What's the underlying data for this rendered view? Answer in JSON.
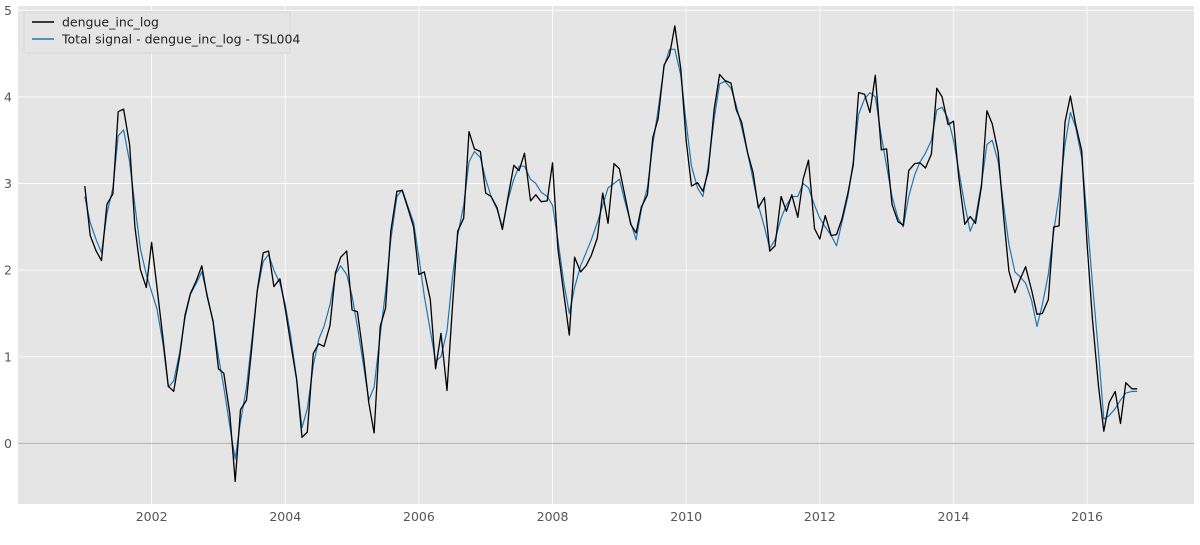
{
  "chart_data": {
    "type": "line",
    "title": "",
    "xlabel": "",
    "ylabel": "",
    "xlim": [
      2000.0,
      2017.6
    ],
    "ylim": [
      -0.7,
      5.05
    ],
    "x_ticks": [
      2002,
      2004,
      2006,
      2008,
      2010,
      2012,
      2014,
      2016
    ],
    "y_ticks": [
      0,
      1,
      2,
      3,
      4,
      5
    ],
    "grid": true,
    "zero_line": true,
    "legend_position": "top-left",
    "colors": {
      "background": "#e5e5e5",
      "grid": "#ffffff",
      "zero_line": "#b0b0b0"
    },
    "series": [
      {
        "name": "dengue_inc_log",
        "color": "#000000",
        "x": [
          2001.0,
          2001.08,
          2001.17,
          2001.25,
          2001.33,
          2001.42,
          2001.5,
          2001.58,
          2001.67,
          2001.75,
          2001.83,
          2001.92,
          2002.0,
          2002.08,
          2002.17,
          2002.25,
          2002.33,
          2002.42,
          2002.5,
          2002.58,
          2002.67,
          2002.75,
          2002.83,
          2002.92,
          2003.0,
          2003.08,
          2003.17,
          2003.25,
          2003.33,
          2003.42,
          2003.5,
          2003.58,
          2003.67,
          2003.75,
          2003.83,
          2003.92,
          2004.0,
          2004.08,
          2004.17,
          2004.25,
          2004.33,
          2004.42,
          2004.5,
          2004.58,
          2004.67,
          2004.75,
          2004.83,
          2004.92,
          2005.0,
          2005.08,
          2005.17,
          2005.25,
          2005.33,
          2005.42,
          2005.5,
          2005.58,
          2005.67,
          2005.75,
          2005.83,
          2005.92,
          2006.0,
          2006.08,
          2006.17,
          2006.25,
          2006.33,
          2006.42,
          2006.5,
          2006.58,
          2006.67,
          2006.75,
          2006.83,
          2006.92,
          2007.0,
          2007.08,
          2007.17,
          2007.25,
          2007.33,
          2007.42,
          2007.5,
          2007.58,
          2007.67,
          2007.75,
          2007.83,
          2007.92,
          2008.0,
          2008.08,
          2008.17,
          2008.25,
          2008.33,
          2008.42,
          2008.5,
          2008.58,
          2008.67,
          2008.75,
          2008.83,
          2008.92,
          2009.0,
          2009.08,
          2009.17,
          2009.25,
          2009.33,
          2009.42,
          2009.5,
          2009.58,
          2009.67,
          2009.75,
          2009.83,
          2009.92,
          2010.0,
          2010.08,
          2010.17,
          2010.25,
          2010.33,
          2010.42,
          2010.5,
          2010.58,
          2010.67,
          2010.75,
          2010.83,
          2010.92,
          2011.0,
          2011.08,
          2011.17,
          2011.25,
          2011.33,
          2011.42,
          2011.5,
          2011.58,
          2011.67,
          2011.75,
          2011.83,
          2011.92,
          2012.0,
          2012.08,
          2012.17,
          2012.25,
          2012.33,
          2012.42,
          2012.5,
          2012.58,
          2012.67,
          2012.75,
          2012.83,
          2012.92,
          2013.0,
          2013.08,
          2013.17,
          2013.25,
          2013.33,
          2013.42,
          2013.5,
          2013.58,
          2013.67,
          2013.75,
          2013.83,
          2013.92,
          2014.0,
          2014.08,
          2014.17,
          2014.25,
          2014.33,
          2014.42,
          2014.5,
          2014.58,
          2014.67,
          2014.75,
          2014.83,
          2014.92,
          2015.0,
          2015.08,
          2015.17,
          2015.25,
          2015.33,
          2015.42,
          2015.5,
          2015.58,
          2015.67,
          2015.75,
          2015.83,
          2015.92,
          2016.0,
          2016.08,
          2016.17,
          2016.25,
          2016.33,
          2016.42,
          2016.5,
          2016.58,
          2016.67,
          2016.75
        ],
        "y": [
          2.97,
          2.4,
          2.22,
          2.11,
          2.76,
          2.88,
          3.83,
          3.86,
          3.45,
          2.5,
          2.01,
          1.8,
          2.32,
          1.8,
          1.21,
          0.66,
          0.6,
          1.01,
          1.48,
          1.73,
          1.88,
          2.05,
          1.7,
          1.41,
          0.86,
          0.81,
          0.34,
          -0.44,
          0.39,
          0.5,
          1.12,
          1.76,
          2.2,
          2.22,
          1.81,
          1.9,
          1.55,
          1.16,
          0.74,
          0.07,
          0.13,
          1.04,
          1.15,
          1.12,
          1.36,
          1.97,
          2.15,
          2.22,
          1.54,
          1.52,
          1.0,
          0.47,
          0.12,
          1.35,
          1.56,
          2.45,
          2.91,
          2.92,
          2.73,
          2.5,
          1.95,
          1.98,
          1.66,
          0.86,
          1.27,
          0.61,
          1.55,
          2.45,
          2.6,
          3.6,
          3.4,
          3.37,
          2.89,
          2.85,
          2.72,
          2.47,
          2.83,
          3.21,
          3.15,
          3.35,
          2.8,
          2.87,
          2.79,
          2.8,
          3.24,
          2.25,
          1.72,
          1.25,
          2.15,
          1.98,
          2.05,
          2.17,
          2.37,
          2.89,
          2.54,
          3.23,
          3.17,
          2.87,
          2.53,
          2.43,
          2.73,
          2.87,
          3.53,
          3.75,
          4.37,
          4.48,
          4.82,
          4.32,
          3.49,
          2.97,
          3.01,
          2.91,
          3.14,
          3.86,
          4.26,
          4.19,
          4.16,
          3.85,
          3.71,
          3.35,
          3.13,
          2.72,
          2.84,
          2.22,
          2.28,
          2.85,
          2.68,
          2.87,
          2.61,
          3.05,
          3.27,
          2.48,
          2.36,
          2.63,
          2.4,
          2.41,
          2.59,
          2.89,
          3.21,
          4.05,
          4.03,
          3.82,
          4.25,
          3.39,
          3.4,
          2.76,
          2.56,
          2.52,
          3.15,
          3.23,
          3.24,
          3.18,
          3.34,
          4.1,
          4.0,
          3.68,
          3.72,
          3.07,
          2.53,
          2.62,
          2.54,
          2.97,
          3.84,
          3.69,
          3.36,
          2.62,
          1.99,
          1.74,
          1.9,
          2.04,
          1.77,
          1.49,
          1.5,
          1.66,
          2.5,
          2.51,
          3.71,
          4.01,
          3.68,
          3.38,
          2.3,
          1.44,
          0.66,
          0.14,
          0.47,
          0.6,
          0.23,
          0.7,
          0.63,
          0.63
        ]
      },
      {
        "name": "Total signal - dengue_inc_log - TSL004",
        "color": "#1f77b4",
        "x": [
          2001.0,
          2001.08,
          2001.17,
          2001.25,
          2001.33,
          2001.42,
          2001.5,
          2001.58,
          2001.67,
          2001.75,
          2001.83,
          2001.92,
          2002.0,
          2002.08,
          2002.17,
          2002.25,
          2002.33,
          2002.42,
          2002.5,
          2002.58,
          2002.67,
          2002.75,
          2002.83,
          2002.92,
          2003.0,
          2003.08,
          2003.17,
          2003.25,
          2003.33,
          2003.42,
          2003.5,
          2003.58,
          2003.67,
          2003.75,
          2003.83,
          2003.92,
          2004.0,
          2004.08,
          2004.17,
          2004.25,
          2004.33,
          2004.42,
          2004.5,
          2004.58,
          2004.67,
          2004.75,
          2004.83,
          2004.92,
          2005.0,
          2005.08,
          2005.17,
          2005.25,
          2005.33,
          2005.42,
          2005.5,
          2005.58,
          2005.67,
          2005.75,
          2005.83,
          2005.92,
          2006.0,
          2006.08,
          2006.17,
          2006.25,
          2006.33,
          2006.42,
          2006.5,
          2006.58,
          2006.67,
          2006.75,
          2006.83,
          2006.92,
          2007.0,
          2007.08,
          2007.17,
          2007.25,
          2007.33,
          2007.42,
          2007.5,
          2007.58,
          2007.67,
          2007.75,
          2007.83,
          2007.92,
          2008.0,
          2008.08,
          2008.17,
          2008.25,
          2008.33,
          2008.42,
          2008.5,
          2008.58,
          2008.67,
          2008.75,
          2008.83,
          2008.92,
          2009.0,
          2009.08,
          2009.17,
          2009.25,
          2009.33,
          2009.42,
          2009.5,
          2009.58,
          2009.67,
          2009.75,
          2009.83,
          2009.92,
          2010.0,
          2010.08,
          2010.17,
          2010.25,
          2010.33,
          2010.42,
          2010.5,
          2010.58,
          2010.67,
          2010.75,
          2010.83,
          2010.92,
          2011.0,
          2011.08,
          2011.17,
          2011.25,
          2011.33,
          2011.42,
          2011.5,
          2011.58,
          2011.67,
          2011.75,
          2011.83,
          2011.92,
          2012.0,
          2012.08,
          2012.17,
          2012.25,
          2012.33,
          2012.42,
          2012.5,
          2012.58,
          2012.67,
          2012.75,
          2012.83,
          2012.92,
          2013.0,
          2013.08,
          2013.17,
          2013.25,
          2013.33,
          2013.42,
          2013.5,
          2013.58,
          2013.67,
          2013.75,
          2013.83,
          2013.92,
          2014.0,
          2014.08,
          2014.17,
          2014.25,
          2014.33,
          2014.42,
          2014.5,
          2014.58,
          2014.67,
          2014.75,
          2014.83,
          2014.92,
          2015.0,
          2015.08,
          2015.17,
          2015.25,
          2015.33,
          2015.42,
          2015.5,
          2015.58,
          2015.67,
          2015.75,
          2015.83,
          2015.92,
          2016.0,
          2016.08,
          2016.17,
          2016.25,
          2016.33,
          2016.42,
          2016.5,
          2016.58,
          2016.67,
          2016.75
        ],
        "y": [
          2.85,
          2.55,
          2.35,
          2.2,
          2.65,
          2.95,
          3.55,
          3.62,
          3.25,
          2.75,
          2.25,
          1.95,
          1.75,
          1.55,
          1.15,
          0.65,
          0.72,
          1.05,
          1.45,
          1.72,
          1.85,
          1.98,
          1.72,
          1.4,
          1.0,
          0.65,
          0.2,
          -0.18,
          0.25,
          0.65,
          1.2,
          1.75,
          2.1,
          2.18,
          2.0,
          1.85,
          1.6,
          1.25,
          0.75,
          0.18,
          0.4,
          0.9,
          1.2,
          1.35,
          1.6,
          1.95,
          2.05,
          1.95,
          1.7,
          1.35,
          0.9,
          0.5,
          0.65,
          1.25,
          1.75,
          2.35,
          2.85,
          2.93,
          2.75,
          2.55,
          2.15,
          1.7,
          1.3,
          0.95,
          1.0,
          1.3,
          1.9,
          2.4,
          2.75,
          3.25,
          3.37,
          3.3,
          3.05,
          2.85,
          2.7,
          2.5,
          2.8,
          3.05,
          3.2,
          3.2,
          3.05,
          3.0,
          2.9,
          2.85,
          2.75,
          2.35,
          1.85,
          1.5,
          1.8,
          2.05,
          2.2,
          2.35,
          2.55,
          2.75,
          2.95,
          3.0,
          3.05,
          2.8,
          2.55,
          2.35,
          2.7,
          2.95,
          3.45,
          3.85,
          4.35,
          4.55,
          4.55,
          4.25,
          3.7,
          3.2,
          2.95,
          2.85,
          3.2,
          3.75,
          4.15,
          4.18,
          4.1,
          3.9,
          3.65,
          3.35,
          3.05,
          2.75,
          2.5,
          2.25,
          2.35,
          2.6,
          2.75,
          2.85,
          2.85,
          3.0,
          2.95,
          2.75,
          2.6,
          2.5,
          2.4,
          2.28,
          2.55,
          2.85,
          3.25,
          3.8,
          3.98,
          4.05,
          4.0,
          3.55,
          3.2,
          2.85,
          2.6,
          2.5,
          2.85,
          3.1,
          3.25,
          3.35,
          3.5,
          3.85,
          3.88,
          3.75,
          3.5,
          3.15,
          2.75,
          2.45,
          2.6,
          3.0,
          3.45,
          3.5,
          3.25,
          2.75,
          2.3,
          1.98,
          1.92,
          1.85,
          1.65,
          1.35,
          1.6,
          1.95,
          2.45,
          2.85,
          3.45,
          3.82,
          3.65,
          3.3,
          2.6,
          1.85,
          1.05,
          0.28,
          0.32,
          0.4,
          0.5,
          0.58,
          0.6,
          0.6
        ]
      }
    ]
  }
}
